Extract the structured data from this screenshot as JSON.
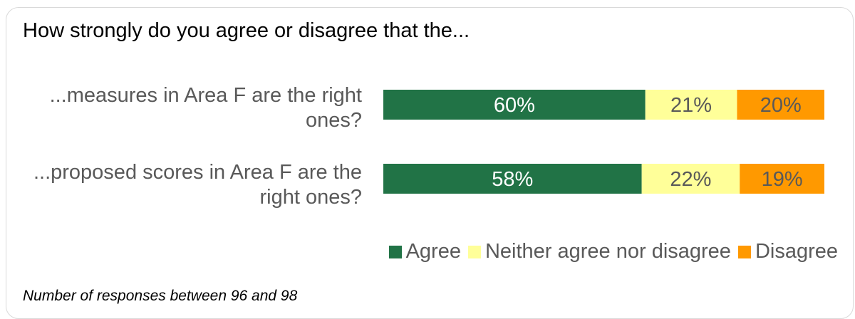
{
  "title": "How strongly do you agree or disagree that the...",
  "footnote": "Number of responses between 96 and 98",
  "chart_data": {
    "type": "bar",
    "orientation": "horizontal",
    "stacked": true,
    "percent_stacked": true,
    "categories": [
      "...measures in Area F are the right ones?",
      "...proposed scores in Area F are the right ones?"
    ],
    "series": [
      {
        "name": "Agree",
        "values": [
          60,
          58
        ],
        "labels": [
          "60%",
          "58%"
        ],
        "color": "#217346",
        "label_color": "#ffffff"
      },
      {
        "name": "Neither agree nor disagree",
        "values": [
          21,
          22
        ],
        "labels": [
          "21%",
          "22%"
        ],
        "color": "#ffff99",
        "label_color": "#595959"
      },
      {
        "name": "Disagree",
        "values": [
          20,
          19
        ],
        "labels": [
          "20%",
          "19%"
        ],
        "color": "#ff9900",
        "label_color": "#595959"
      }
    ],
    "legend_position": "bottom-right",
    "grid": false
  }
}
